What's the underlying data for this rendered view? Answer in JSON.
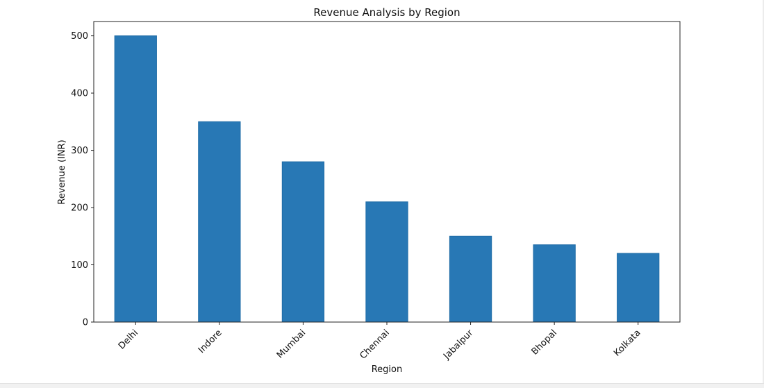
{
  "chart_data": {
    "type": "bar",
    "title": "Revenue Analysis by Region",
    "xlabel": "Region",
    "ylabel": "Revenue (INR)",
    "categories": [
      "Delhi",
      "Indore",
      "Mumbai",
      "Chennai",
      "Jabalpur",
      "Bhopal",
      "Kolkata"
    ],
    "values": [
      500,
      350,
      280,
      210,
      150,
      135,
      120
    ],
    "yticks": [
      0,
      100,
      200,
      300,
      400,
      500
    ],
    "ylim": [
      0,
      525
    ],
    "x_tick_rotation_deg": 45,
    "grid": false,
    "legend": "none",
    "bar_color": "#2878b5",
    "bar_edge_color": "#1f6ca6"
  }
}
